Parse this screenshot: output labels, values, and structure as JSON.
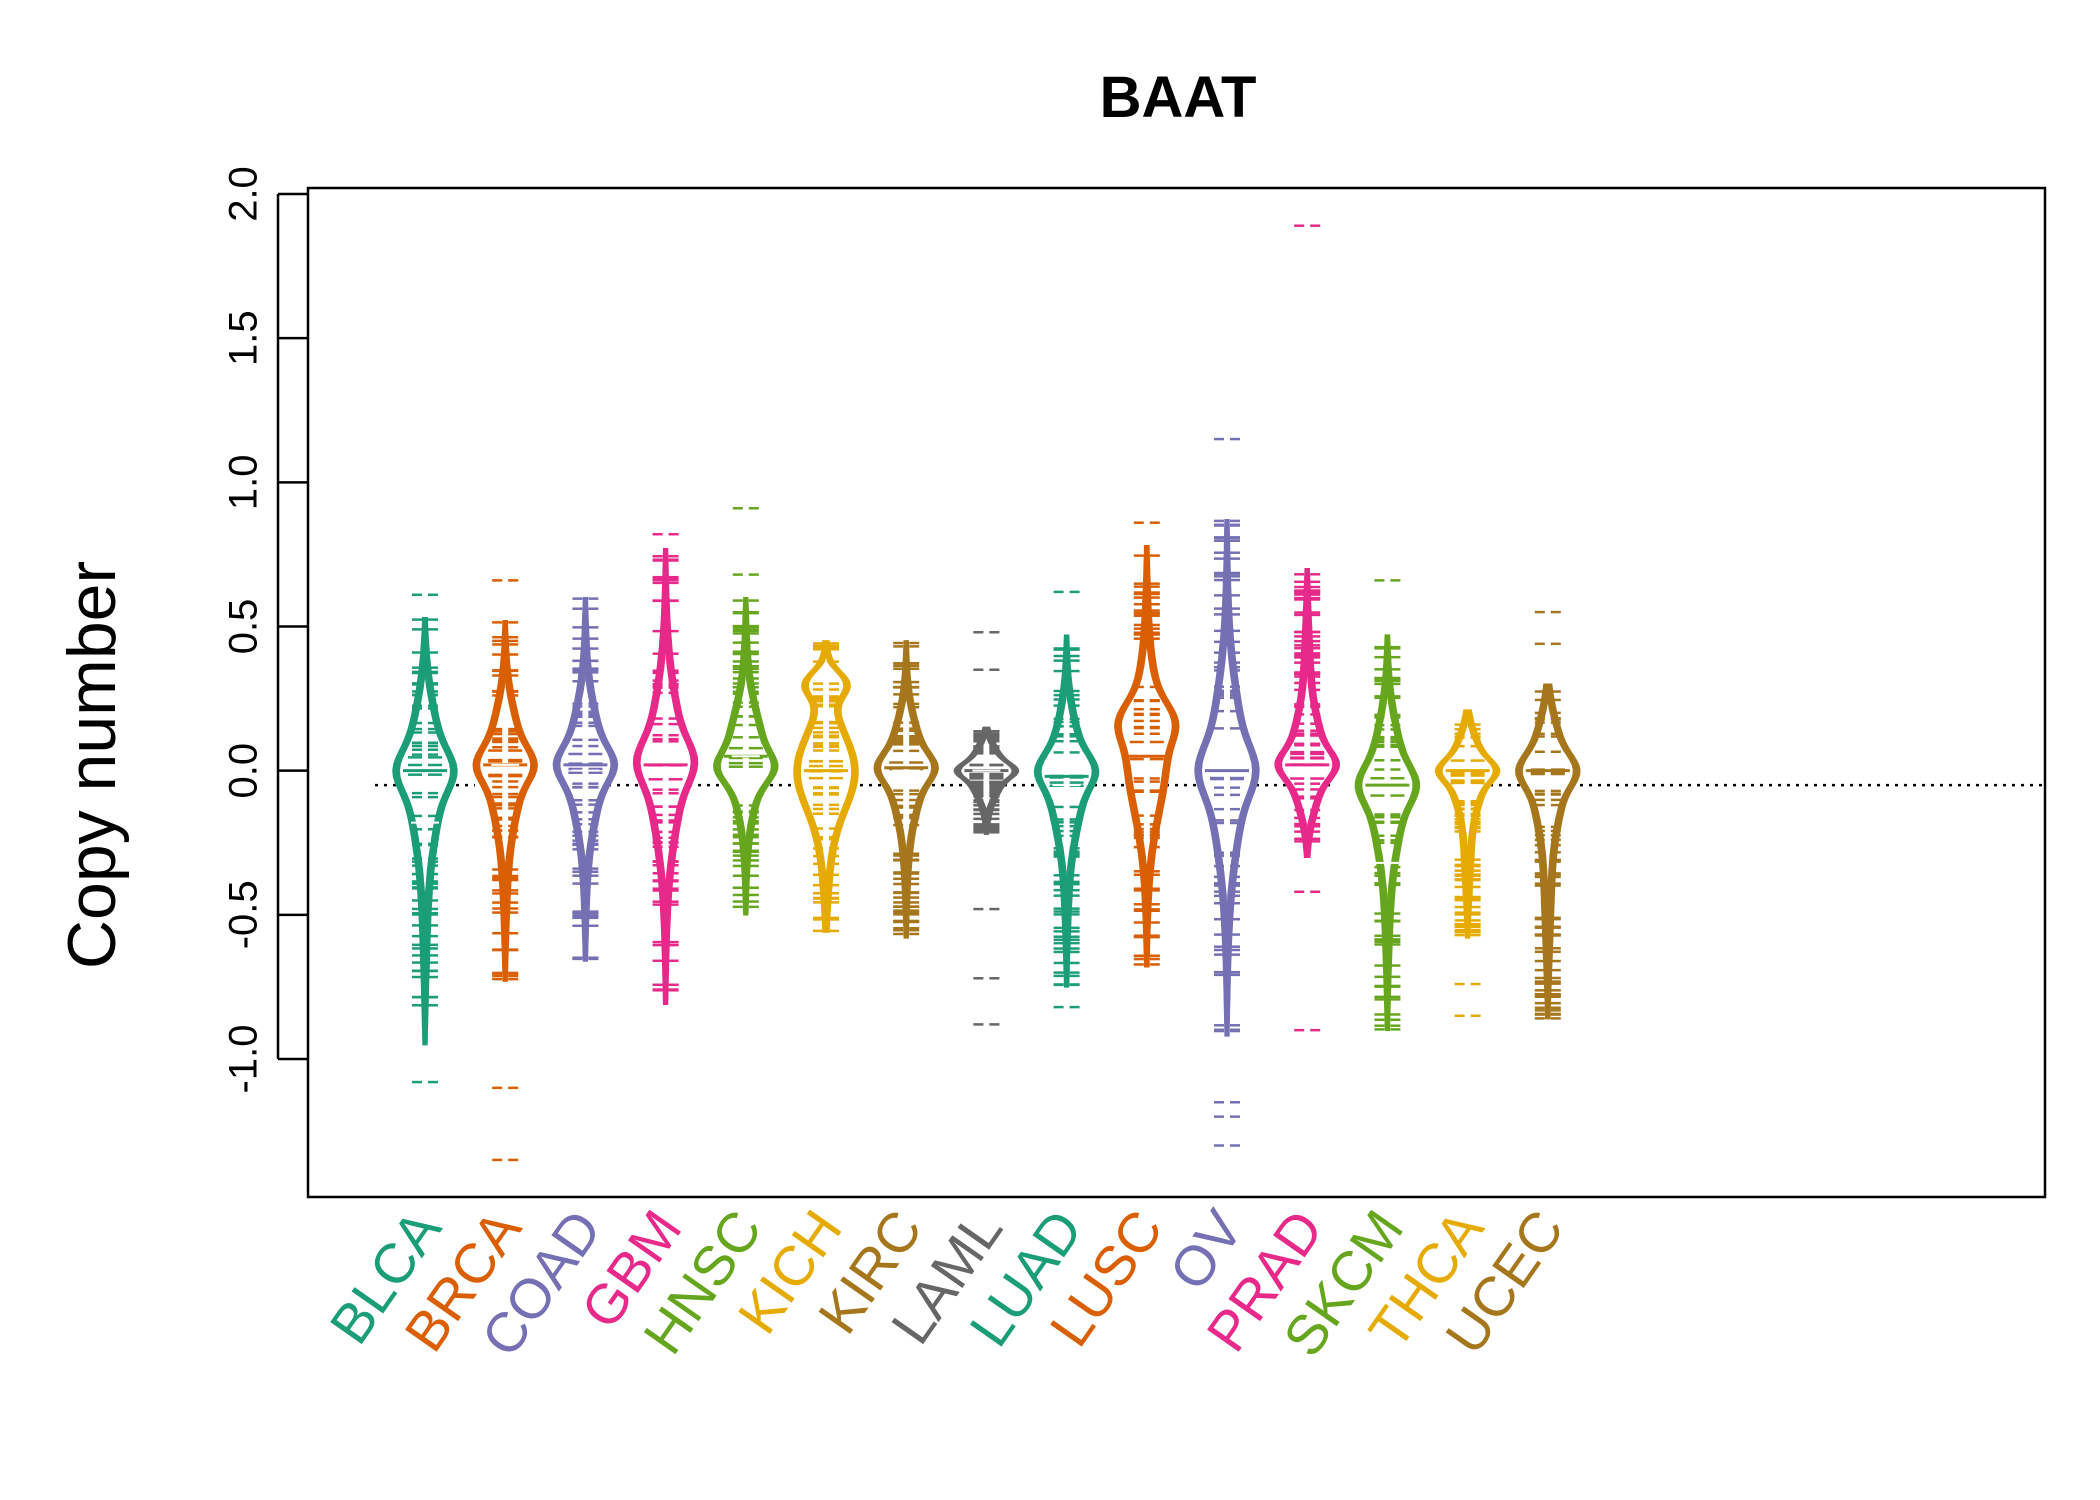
{
  "chart_data": {
    "type": "beanplot",
    "title": "BAAT",
    "xlabel": "",
    "ylabel": "Copy number",
    "ylim": [
      -1.48,
      2.0
    ],
    "yticks": [
      -1.0,
      -0.5,
      0.0,
      0.5,
      1.0,
      1.5,
      2.0
    ],
    "ytick_labels": [
      "-1.0",
      "-0.5",
      "0.0",
      "0.5",
      "1.0",
      "1.5",
      "2.0"
    ],
    "reference_line": -0.05,
    "categories": [
      "BLCA",
      "BRCA",
      "COAD",
      "GBM",
      "HNSC",
      "KICH",
      "KIRC",
      "LAML",
      "LUAD",
      "LUSC",
      "OV",
      "PRAD",
      "SKCM",
      "THCA",
      "UCEC"
    ],
    "colors": [
      "#1B9E77",
      "#D95F02",
      "#7570B3",
      "#E7298A",
      "#66A61E",
      "#E6AB02",
      "#A6761D",
      "#666666",
      "#1B9E77",
      "#D95F02",
      "#7570B3",
      "#E7298A",
      "#66A61E",
      "#E6AB02",
      "#A6761D"
    ],
    "series": [
      {
        "name": "BLCA",
        "min": -1.08,
        "max": 0.61,
        "median": 0.0,
        "mode": 0.0,
        "mean": -0.18,
        "bulk_low": -0.95,
        "bulk_high": 0.53,
        "outliers": [
          -1.08,
          0.61
        ]
      },
      {
        "name": "BRCA",
        "min": -1.35,
        "max": 0.66,
        "median": 0.02,
        "mode": 0.02,
        "mean": 0.02,
        "bulk_low": -0.73,
        "bulk_high": 0.52,
        "outliers": [
          -1.1,
          -1.35,
          0.66
        ]
      },
      {
        "name": "COAD",
        "min": -0.68,
        "max": 0.62,
        "median": 0.02,
        "mode": 0.02,
        "mean": 0.0,
        "bulk_low": -0.66,
        "bulk_high": 0.6,
        "outliers": []
      },
      {
        "name": "GBM",
        "min": -0.82,
        "max": 0.82,
        "median": 0.02,
        "mode": 0.03,
        "mean": 0.0,
        "bulk_low": -0.81,
        "bulk_high": 0.77,
        "outliers": [
          0.82
        ]
      },
      {
        "name": "HNSC",
        "min": -0.52,
        "max": 0.91,
        "median": 0.05,
        "mode": 0.01,
        "mean": 0.05,
        "bulk_low": -0.5,
        "bulk_high": 0.6,
        "outliers": [
          0.68,
          0.91
        ]
      },
      {
        "name": "KICH",
        "min": -0.58,
        "max": 0.46,
        "median": 0.0,
        "mode": 0.3,
        "mean": -0.05,
        "bulk_low": -0.56,
        "bulk_high": 0.45,
        "outliers": []
      },
      {
        "name": "KIRC",
        "min": -0.6,
        "max": 0.47,
        "median": 0.01,
        "mode": 0.01,
        "mean": 0.0,
        "bulk_low": -0.58,
        "bulk_high": 0.45,
        "outliers": []
      },
      {
        "name": "LAML",
        "min": -0.88,
        "max": 0.48,
        "median": 0.0,
        "mode": 0.0,
        "mean": 0.0,
        "bulk_low": -0.22,
        "bulk_high": 0.15,
        "outliers": [
          -0.48,
          -0.72,
          -0.88,
          0.35,
          0.48
        ]
      },
      {
        "name": "LUAD",
        "min": -0.82,
        "max": 0.62,
        "median": -0.02,
        "mode": 0.0,
        "mean": -0.05,
        "bulk_low": -0.75,
        "bulk_high": 0.47,
        "outliers": [
          -0.82,
          0.62
        ]
      },
      {
        "name": "LUSC",
        "min": -0.7,
        "max": 0.86,
        "median": 0.05,
        "mode": 0.17,
        "mean": 0.0,
        "bulk_low": -0.68,
        "bulk_high": 0.78,
        "outliers": [
          0.86
        ]
      },
      {
        "name": "OV",
        "min": -1.3,
        "max": 1.15,
        "median": 0.0,
        "mode": 0.0,
        "mean": -0.12,
        "bulk_low": -0.92,
        "bulk_high": 0.87,
        "outliers": [
          -1.15,
          -1.2,
          -1.3,
          1.15
        ]
      },
      {
        "name": "PRAD",
        "min": -0.9,
        "max": 1.89,
        "median": 0.02,
        "mode": 0.02,
        "mean": 0.0,
        "bulk_low": -0.3,
        "bulk_high": 0.7,
        "outliers": [
          -0.42,
          -0.9,
          1.89
        ]
      },
      {
        "name": "SKCM",
        "min": -0.95,
        "max": 0.66,
        "median": -0.05,
        "mode": -0.05,
        "mean": -0.32,
        "bulk_low": -0.9,
        "bulk_high": 0.47,
        "outliers": [
          0.66
        ]
      },
      {
        "name": "THCA",
        "min": -0.85,
        "max": 0.21,
        "median": 0.0,
        "mode": 0.0,
        "mean": -0.05,
        "bulk_low": -0.58,
        "bulk_high": 0.21,
        "outliers": [
          -0.74,
          -0.85
        ]
      },
      {
        "name": "UCEC",
        "min": -0.86,
        "max": 0.55,
        "median": 0.0,
        "mode": 0.0,
        "mean": -0.05,
        "bulk_low": -0.86,
        "bulk_high": 0.3,
        "outliers": [
          0.44,
          0.55
        ]
      }
    ]
  }
}
